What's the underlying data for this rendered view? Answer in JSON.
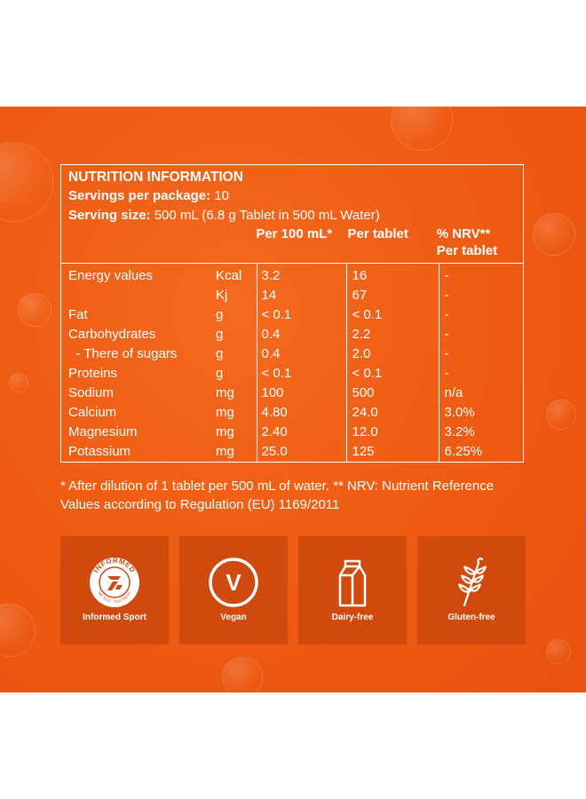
{
  "nutrition": {
    "title": "NUTRITION INFORMATION",
    "servings_label": "Servings per package:",
    "servings_value": " 10",
    "serving_size_label": "Serving size:",
    "serving_size_value": " 500 mL (6.8 g Tablet in 500 mL Water)",
    "col_per100": "Per 100 mL*",
    "col_pertablet": "Per tablet",
    "col_nrv_1": "% NRV**",
    "col_nrv_2": "Per tablet",
    "rows": [
      {
        "name": "Energy values",
        "unit": "Kcal",
        "per100": "3.2",
        "pertablet": "16",
        "nrv": "-"
      },
      {
        "name": "",
        "unit": "Kj",
        "per100": "14",
        "pertablet": "67",
        "nrv": "-"
      },
      {
        "name": "Fat",
        "unit": "g",
        "per100": "< 0.1",
        "pertablet": "< 0.1",
        "nrv": "-"
      },
      {
        "name": "Carbohydrates",
        "unit": "g",
        "per100": "0.4",
        "pertablet": "2.2",
        "nrv": "-"
      },
      {
        "name": "  - There of sugars",
        "unit": "g",
        "per100": "0.4",
        "pertablet": "2.0",
        "nrv": "-"
      },
      {
        "name": "Proteins",
        "unit": "g",
        "per100": "< 0.1",
        "pertablet": "< 0.1",
        "nrv": "-"
      },
      {
        "name": "Sodium",
        "unit": "mg",
        "per100": "100",
        "pertablet": "500",
        "nrv": "n/a"
      },
      {
        "name": "Calcium",
        "unit": "mg",
        "per100": "4.80",
        "pertablet": "24.0",
        "nrv": "3.0%"
      },
      {
        "name": "Magnesium",
        "unit": "mg",
        "per100": "2.40",
        "pertablet": "12.0",
        "nrv": "3.2%"
      },
      {
        "name": "Potassium",
        "unit": "mg",
        "per100": "25.0",
        "pertablet": "125",
        "nrv": "6.25%"
      }
    ],
    "footnote": "* After dilution of 1 tablet per 500 mL of water. ** NRV: Nutrient Reference Values according to Regulation (EU) 1169/2011"
  },
  "badges": [
    {
      "label": "Informed Sport",
      "icon": "informed-sport-icon",
      "icon_text_top": "INFORMED",
      "icon_text_bottom": "WE TEST · YOU TRUST"
    },
    {
      "label": "Vegan",
      "icon": "vegan-icon",
      "icon_text": "V"
    },
    {
      "label": "Dairy-free",
      "icon": "milk-carton-icon"
    },
    {
      "label": "Gluten-free",
      "icon": "wheat-icon"
    }
  ],
  "colors": {
    "background": "#ee5a12",
    "badge": "#cf4a0c",
    "text": "#ffffff"
  }
}
